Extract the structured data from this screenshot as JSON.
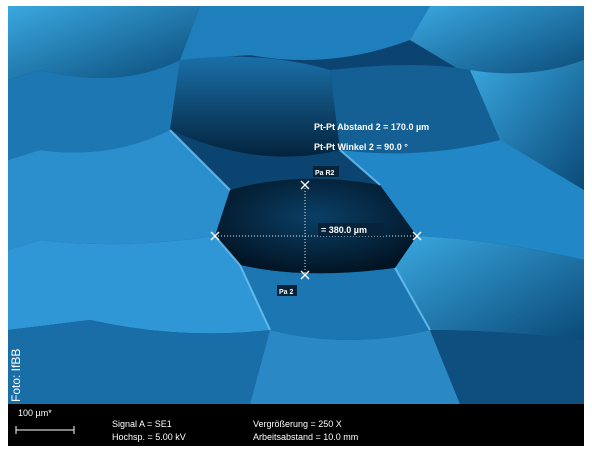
{
  "measurement": {
    "distance_label": "Pt-Pt Abstand 2 = 170.0 µm",
    "angle_label": "Pt-Pt Winkel 2 = 90.0 °",
    "point_top": "Pa R2",
    "horizontal_label": "= 380.0 µm",
    "point_bottom": "Pa 2"
  },
  "credit": "Foto: IfBB",
  "info_bar": {
    "scale": "100 µm*",
    "signal": "Signal A = SE1",
    "voltage": "Hochsp. = 5.00 kV",
    "magnification": "Vergrößerung = 250 X",
    "working_distance": "Arbeitsabstand = 10.0 mm"
  }
}
